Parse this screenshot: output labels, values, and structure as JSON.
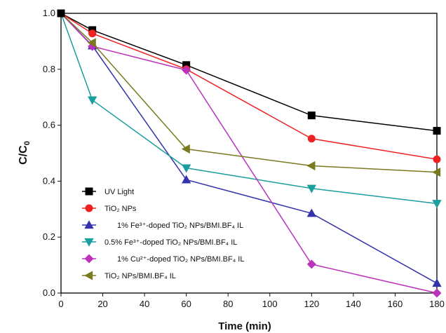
{
  "chart_data": {
    "type": "line",
    "xlabel": "Time (min)",
    "ylabel": "C/C",
    "ylabel_subscript": "0",
    "xlim": [
      0,
      180
    ],
    "ylim": [
      0.0,
      1.0
    ],
    "xticks": [
      "0",
      "20",
      "40",
      "60",
      "80",
      "100",
      "120",
      "140",
      "160",
      "180"
    ],
    "yticks": [
      "0.0",
      "0.2",
      "0.4",
      "0.6",
      "0.8",
      "1.0"
    ],
    "x": [
      0,
      15,
      60,
      120,
      180
    ],
    "legend_position": "bottom-left",
    "grid": false,
    "series": [
      {
        "name": "UV Light",
        "color": "#000000",
        "marker": "square",
        "values": [
          1.0,
          0.94,
          0.815,
          0.635,
          0.58
        ]
      },
      {
        "name": "TiO₂ NPs",
        "color": "#ee2222",
        "marker": "circle",
        "values": [
          1.0,
          0.928,
          0.8,
          0.552,
          0.478
        ]
      },
      {
        "name": "1% Fe³⁺-doped TiO₂ NPs/BMI.BF₄ IL",
        "color": "#3333aa",
        "marker": "triangle-up",
        "values": [
          1.0,
          0.884,
          0.405,
          0.285,
          0.035
        ]
      },
      {
        "name": "0.5% Fe³⁺-doped TiO₂ NPs/BMI.BF₄ IL",
        "color": "#1a9e9e",
        "marker": "triangle-down",
        "values": [
          1.0,
          0.69,
          0.447,
          0.374,
          0.32
        ]
      },
      {
        "name": "1% Cu²⁺-doped TiO₂ NPs/BMI.BF₄ IL",
        "color": "#bb33bb",
        "marker": "diamond",
        "values": [
          1.0,
          0.882,
          0.797,
          0.103,
          0.0
        ]
      },
      {
        "name": "TiO₂ NPs/BMI.BF₄ IL",
        "color": "#7a7a20",
        "marker": "triangle-left",
        "values": [
          1.0,
          0.895,
          0.515,
          0.455,
          0.432
        ]
      }
    ]
  }
}
